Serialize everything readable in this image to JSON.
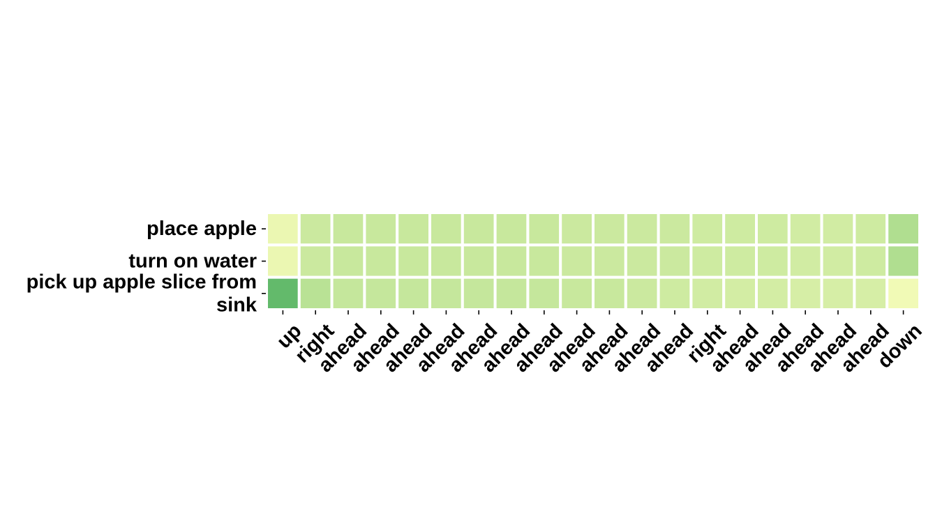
{
  "chart_data": {
    "type": "heatmap",
    "title": "",
    "xlabel": "",
    "ylabel": "",
    "x_categories": [
      "up",
      "right",
      "ahead",
      "ahead",
      "ahead",
      "ahead",
      "ahead",
      "ahead",
      "ahead",
      "ahead",
      "ahead",
      "ahead",
      "ahead",
      "right",
      "ahead",
      "ahead",
      "ahead",
      "ahead",
      "ahead",
      "down"
    ],
    "y_categories": [
      [
        "place apple"
      ],
      [
        "turn on water"
      ],
      [
        "pick up apple slice from",
        "sink"
      ]
    ],
    "values": [
      [
        0.08,
        0.3,
        0.32,
        0.32,
        0.32,
        0.32,
        0.32,
        0.32,
        0.32,
        0.3,
        0.3,
        0.3,
        0.3,
        0.28,
        0.28,
        0.28,
        0.26,
        0.26,
        0.28,
        0.48
      ],
      [
        0.08,
        0.3,
        0.32,
        0.32,
        0.32,
        0.32,
        0.32,
        0.32,
        0.32,
        0.3,
        0.3,
        0.3,
        0.3,
        0.28,
        0.28,
        0.28,
        0.26,
        0.26,
        0.28,
        0.48
      ],
      [
        0.8,
        0.42,
        0.34,
        0.34,
        0.34,
        0.34,
        0.34,
        0.34,
        0.34,
        0.32,
        0.32,
        0.3,
        0.28,
        0.26,
        0.24,
        0.24,
        0.22,
        0.22,
        0.22,
        0.04
      ]
    ],
    "colormap": [
      "#f7fcb9",
      "#addd8e",
      "#31a354"
    ],
    "vmin": 0,
    "vmax": 1,
    "colorbar": false,
    "grid": false
  }
}
